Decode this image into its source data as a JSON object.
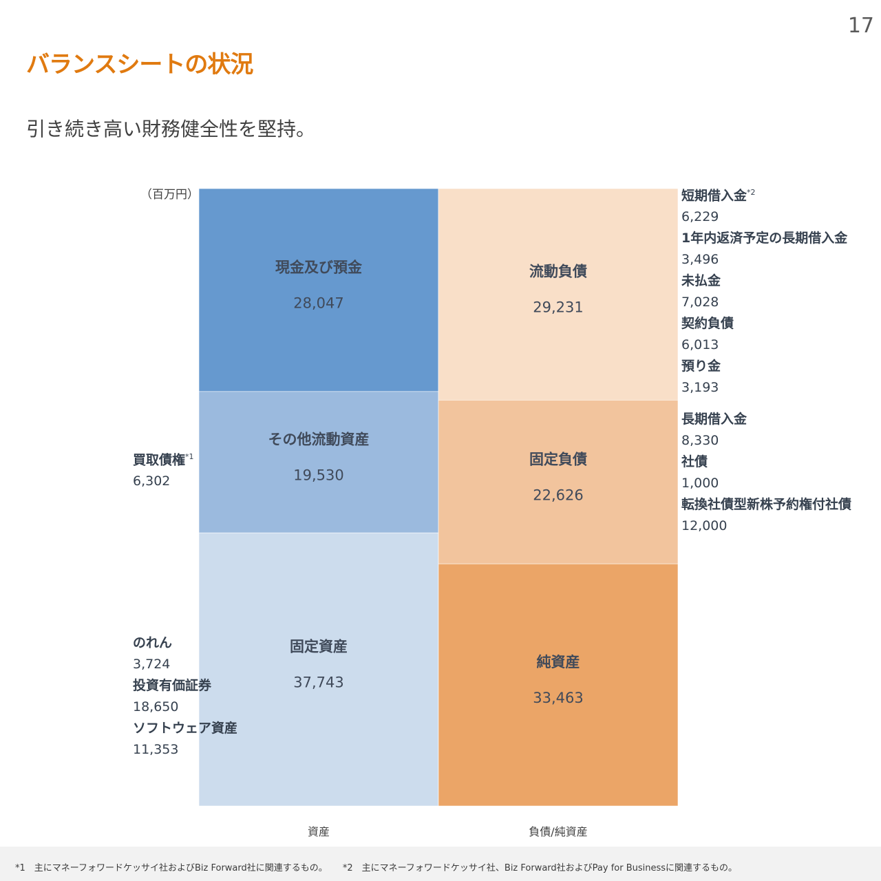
{
  "page_number": "17",
  "title": "バランスシートの状況",
  "subtitle": "引き続き高い財務健全性を堅持。",
  "unit": "（百万円）",
  "colors": {
    "title": "#e07a10",
    "cash": "#6699cf",
    "other_current_assets": "#9bbade",
    "fixed_assets": "#ccdced",
    "current_liabilities": "#f9dfc8",
    "fixed_liabilities": "#f2c49d",
    "net_assets": "#eba567"
  },
  "chart_data": {
    "type": "bar",
    "stacked": true,
    "categories": [
      "資産",
      "負債/純資産"
    ],
    "series": [
      {
        "name": "現金及び預金",
        "category": "資産",
        "value": 28047,
        "value_label": "28,047",
        "color_key": "cash"
      },
      {
        "name": "その他流動資産",
        "category": "資産",
        "value": 19530,
        "value_label": "19,530",
        "color_key": "other_current_assets"
      },
      {
        "name": "固定資産",
        "category": "資産",
        "value": 37743,
        "value_label": "37,743",
        "color_key": "fixed_assets"
      },
      {
        "name": "流動負債",
        "category": "負債/純資産",
        "value": 29231,
        "value_label": "29,231",
        "color_key": "current_liabilities"
      },
      {
        "name": "固定負債",
        "category": "負債/純資産",
        "value": 22626,
        "value_label": "22,626",
        "color_key": "fixed_liabilities"
      },
      {
        "name": "純資産",
        "category": "負債/純資産",
        "value": 33463,
        "value_label": "33,463",
        "color_key": "net_assets"
      }
    ],
    "grid": false,
    "legend": "none"
  },
  "left_notes": {
    "other_current": [
      {
        "label": "買取債権",
        "sup": "*1",
        "value": "6,302"
      }
    ],
    "fixed": [
      {
        "label": "のれん",
        "sup": "",
        "value": "3,724"
      },
      {
        "label": "投資有価証券",
        "sup": "",
        "value": "18,650"
      },
      {
        "label": "ソフトウェア資産",
        "sup": "",
        "value": "11,353"
      }
    ]
  },
  "right_notes": {
    "current": [
      {
        "label": "短期借入金",
        "sup": "*2",
        "value": "6,229"
      },
      {
        "label": "1年内返済予定の長期借入金",
        "sup": "",
        "value": "3,496"
      },
      {
        "label": "未払金",
        "sup": "",
        "value": "7,028"
      },
      {
        "label": "契約負債",
        "sup": "",
        "value": "6,013"
      },
      {
        "label": "預り金",
        "sup": "",
        "value": "3,193"
      }
    ],
    "fixed": [
      {
        "label": "長期借入金",
        "sup": "",
        "value": "8,330"
      },
      {
        "label": "社債",
        "sup": "",
        "value": "1,000"
      },
      {
        "label": "転換社債型新株予約権付社債",
        "sup": "",
        "value": "12,000"
      }
    ]
  },
  "footnotes": [
    "*1　主にマネーフォワードケッサイ社およびBiz Forward社に関連するもの。",
    "*2　主にマネーフォワードケッサイ社、Biz Forward社およびPay for Businessに関連するもの。"
  ]
}
